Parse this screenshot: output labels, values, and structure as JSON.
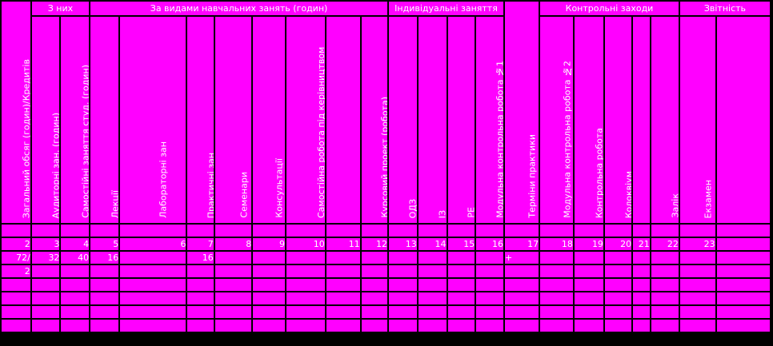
{
  "header": {
    "total": "Загальний обсяг (годин)/Кредитів",
    "group_of_them": "З них",
    "group_by_type": "За видами навчальних занять (годин)",
    "group_individual": "Індивідуальні заняття",
    "group_control": "Контрольні заходи",
    "group_reporting": "Звітність",
    "practice_terms": "Терміни практики",
    "cols": [
      "Аудиторні зан. (годин)",
      "Самостійні заняття студ. (годин)",
      "Лекції",
      "Лабораторні зан",
      "Практичні зан",
      "Семенари",
      "Консультації",
      "Самостійна робота під керівництвом викладача",
      "",
      "Курсовий проект (робота)",
      "ОДЗ",
      "ІЗ",
      "РЕ",
      "Модульна контрольна робота №1",
      "Модульна контрольна робота №2",
      "Контрольна робота",
      "Колоквіум",
      "",
      "Залік",
      "Екзамен",
      ""
    ]
  },
  "numbers": [
    "2",
    "3",
    "4",
    "5",
    "6",
    "7",
    "8",
    "9",
    "10",
    "11",
    "12",
    "13",
    "14",
    "15",
    "16",
    "17",
    "18",
    "19",
    "20",
    "21",
    "22",
    "23"
  ],
  "rows": [
    {
      "total": "72/",
      "aud": "32",
      "self": "40",
      "lect": "16",
      "prac": "16",
      "mkr1": "+"
    },
    {
      "total": "2"
    }
  ]
}
